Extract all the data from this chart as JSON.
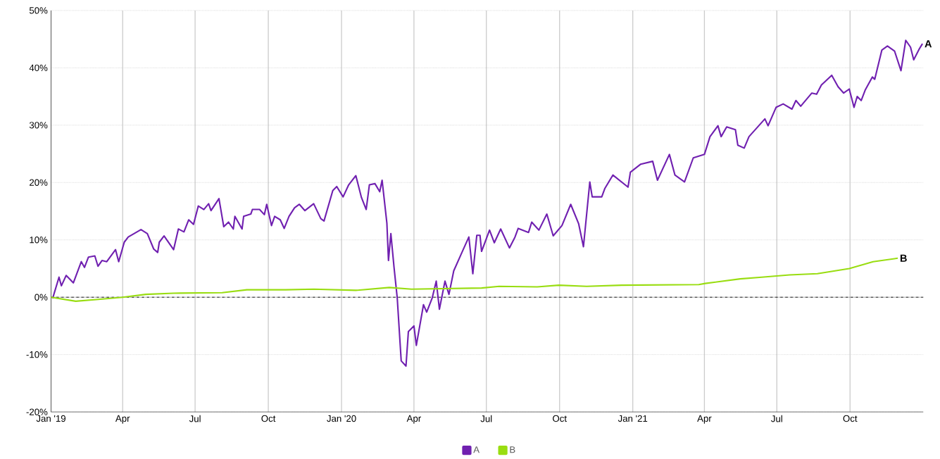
{
  "chart_data": {
    "type": "line",
    "xlim": [
      "2019-01-01",
      "2022-01-01"
    ],
    "ylim": [
      -20,
      50
    ],
    "xticks": [
      {
        "value": "2019-01-01",
        "label": "Jan '19"
      },
      {
        "value": "2019-04-01",
        "label": "Apr"
      },
      {
        "value": "2019-07-01",
        "label": "Jul"
      },
      {
        "value": "2019-10-01",
        "label": "Oct"
      },
      {
        "value": "2020-01-01",
        "label": "Jan '20"
      },
      {
        "value": "2020-04-01",
        "label": "Apr"
      },
      {
        "value": "2020-07-01",
        "label": "Jul"
      },
      {
        "value": "2020-10-01",
        "label": "Oct"
      },
      {
        "value": "2021-01-01",
        "label": "Jan '21"
      },
      {
        "value": "2021-04-01",
        "label": "Apr"
      },
      {
        "value": "2021-07-01",
        "label": "Jul"
      },
      {
        "value": "2021-10-01",
        "label": "Oct"
      }
    ],
    "yticks": [
      {
        "value": -20,
        "label": "-20%"
      },
      {
        "value": -10,
        "label": "-10%"
      },
      {
        "value": 0,
        "label": "0%"
      },
      {
        "value": 10,
        "label": "10%"
      },
      {
        "value": 20,
        "label": "20%"
      },
      {
        "value": 30,
        "label": "30%"
      },
      {
        "value": 40,
        "label": "40%"
      },
      {
        "value": 50,
        "label": "50%"
      }
    ],
    "grid": true,
    "legend": "bottom",
    "marker": "none",
    "line_style": "solid",
    "ref_lines": [
      {
        "axis": "y",
        "value": 0,
        "color": "#000000",
        "line_style": "dotted"
      }
    ],
    "series": [
      {
        "name": "A",
        "color": "#7020b0",
        "x": [
          "2019-01-03",
          "2019-01-11",
          "2019-01-14",
          "2019-01-20",
          "2019-01-29",
          "2019-02-08",
          "2019-02-12",
          "2019-02-17",
          "2019-02-25",
          "2019-03-01",
          "2019-03-06",
          "2019-03-12",
          "2019-03-23",
          "2019-03-27",
          "2019-04-03",
          "2019-04-08",
          "2019-04-24",
          "2019-05-02",
          "2019-05-10",
          "2019-05-15",
          "2019-05-17",
          "2019-05-23",
          "2019-05-29",
          "2019-06-04",
          "2019-06-10",
          "2019-06-17",
          "2019-06-23",
          "2019-06-29",
          "2019-07-05",
          "2019-07-12",
          "2019-07-18",
          "2019-07-21",
          "2019-07-31",
          "2019-08-06",
          "2019-08-12",
          "2019-08-18",
          "2019-08-20",
          "2019-08-29",
          "2019-08-31",
          "2019-09-09",
          "2019-09-11",
          "2019-09-20",
          "2019-09-26",
          "2019-09-29",
          "2019-10-05",
          "2019-10-09",
          "2019-10-16",
          "2019-10-21",
          "2019-10-27",
          "2019-11-03",
          "2019-11-09",
          "2019-11-16",
          "2019-11-27",
          "2019-12-06",
          "2019-12-10",
          "2019-12-21",
          "2019-12-26",
          "2020-01-03",
          "2020-01-10",
          "2020-01-19",
          "2020-01-26",
          "2020-02-01",
          "2020-02-05",
          "2020-02-12",
          "2020-02-18",
          "2020-02-21",
          "2020-02-27",
          "2020-02-29",
          "2020-03-03",
          "2020-03-07",
          "2020-03-11",
          "2020-03-16",
          "2020-03-22",
          "2020-03-25",
          "2020-04-01",
          "2020-04-04",
          "2020-04-13",
          "2020-04-17",
          "2020-04-24",
          "2020-04-29",
          "2020-05-03",
          "2020-05-10",
          "2020-05-15",
          "2020-05-21",
          "2020-05-30",
          "2020-06-09",
          "2020-06-14",
          "2020-06-19",
          "2020-06-23",
          "2020-06-25",
          "2020-07-05",
          "2020-07-11",
          "2020-07-19",
          "2020-07-30",
          "2020-08-06",
          "2020-08-10",
          "2020-08-23",
          "2020-08-27",
          "2020-09-05",
          "2020-09-15",
          "2020-09-23",
          "2020-10-04",
          "2020-10-15",
          "2020-10-25",
          "2020-10-31",
          "2020-11-08",
          "2020-11-11",
          "2020-11-23",
          "2020-11-27",
          "2020-12-07",
          "2020-12-26",
          "2020-12-29",
          "2021-01-11",
          "2021-01-26",
          "2021-02-01",
          "2021-02-16",
          "2021-02-23",
          "2021-03-07",
          "2021-03-18",
          "2021-04-01",
          "2021-04-08",
          "2021-04-18",
          "2021-04-22",
          "2021-04-29",
          "2021-05-10",
          "2021-05-13",
          "2021-05-21",
          "2021-05-27",
          "2021-06-16",
          "2021-06-20",
          "2021-06-30",
          "2021-07-09",
          "2021-07-20",
          "2021-07-25",
          "2021-07-31",
          "2021-08-14",
          "2021-08-20",
          "2021-08-26",
          "2021-09-08",
          "2021-09-16",
          "2021-09-23",
          "2021-09-30",
          "2021-10-06",
          "2021-10-10",
          "2021-10-15",
          "2021-10-20",
          "2021-10-29",
          "2021-11-01",
          "2021-11-10",
          "2021-11-17",
          "2021-11-26",
          "2021-12-04",
          "2021-12-10",
          "2021-12-16",
          "2021-12-20",
          "2021-12-27",
          "2021-12-31"
        ],
        "values": [
          -0.2,
          3.5,
          2.0,
          3.8,
          2.5,
          6.2,
          5.2,
          7.0,
          7.2,
          5.4,
          6.4,
          6.2,
          8.3,
          6.2,
          9.6,
          10.5,
          11.8,
          11.1,
          8.4,
          7.8,
          9.6,
          10.7,
          9.5,
          8.3,
          11.9,
          11.4,
          13.5,
          12.7,
          15.9,
          15.3,
          16.3,
          15.1,
          17.2,
          12.3,
          13.1,
          11.9,
          14.1,
          11.9,
          14.1,
          14.5,
          15.3,
          15.3,
          14.4,
          16.2,
          12.5,
          14.1,
          13.5,
          12.0,
          14.1,
          15.6,
          16.2,
          15.1,
          16.3,
          13.7,
          13.3,
          18.6,
          19.3,
          17.5,
          19.6,
          21.2,
          17.4,
          15.3,
          19.6,
          19.8,
          18.4,
          20.4,
          12.9,
          6.4,
          11.1,
          5.2,
          -0.1,
          -11.1,
          -12.0,
          -6.0,
          -5.0,
          -8.4,
          -1.3,
          -2.6,
          -0.1,
          2.8,
          -2.1,
          2.8,
          0.5,
          4.6,
          7.4,
          10.5,
          4.1,
          10.8,
          10.8,
          8.0,
          11.7,
          9.5,
          11.9,
          8.6,
          10.5,
          12.0,
          11.3,
          13.1,
          11.7,
          14.5,
          10.7,
          12.5,
          16.2,
          12.8,
          8.8,
          20.1,
          17.5,
          17.5,
          19.0,
          21.3,
          19.2,
          21.8,
          23.2,
          23.7,
          20.4,
          24.9,
          21.3,
          20.1,
          24.3,
          24.9,
          28.0,
          29.9,
          28.0,
          29.7,
          29.2,
          26.5,
          26.0,
          28.0,
          31.1,
          29.9,
          33.1,
          33.7,
          32.8,
          34.3,
          33.3,
          35.6,
          35.4,
          37.0,
          38.7,
          36.7,
          35.6,
          36.3,
          33.1,
          35.0,
          34.3,
          36.1,
          38.4,
          38.0,
          43.1,
          43.8,
          42.9,
          39.5,
          44.8,
          43.6,
          41.4,
          43.3,
          44.2
        ]
      },
      {
        "name": "B",
        "color": "#99dd11",
        "x": [
          "2019-01-01",
          "2019-02-01",
          "2019-02-27",
          "2019-04-01",
          "2019-04-30",
          "2019-06-04",
          "2019-08-04",
          "2019-09-04",
          "2019-10-23",
          "2019-11-27",
          "2020-01-19",
          "2020-03-01",
          "2020-03-29",
          "2020-06-25",
          "2020-07-17",
          "2020-09-03",
          "2020-09-30",
          "2020-11-04",
          "2020-12-18",
          "2021-03-25",
          "2021-04-02",
          "2021-05-16",
          "2021-06-12",
          "2021-07-17",
          "2021-08-21",
          "2021-09-30",
          "2021-10-30",
          "2021-11-30"
        ],
        "values": [
          0,
          -0.7,
          -0.4,
          0,
          0.5,
          0.7,
          0.8,
          1.3,
          1.3,
          1.4,
          1.2,
          1.7,
          1.4,
          1.6,
          1.9,
          1.8,
          2.1,
          1.9,
          2.1,
          2.2,
          2.4,
          3.2,
          3.5,
          3.9,
          4.1,
          5.0,
          6.2,
          6.8
        ]
      }
    ]
  }
}
